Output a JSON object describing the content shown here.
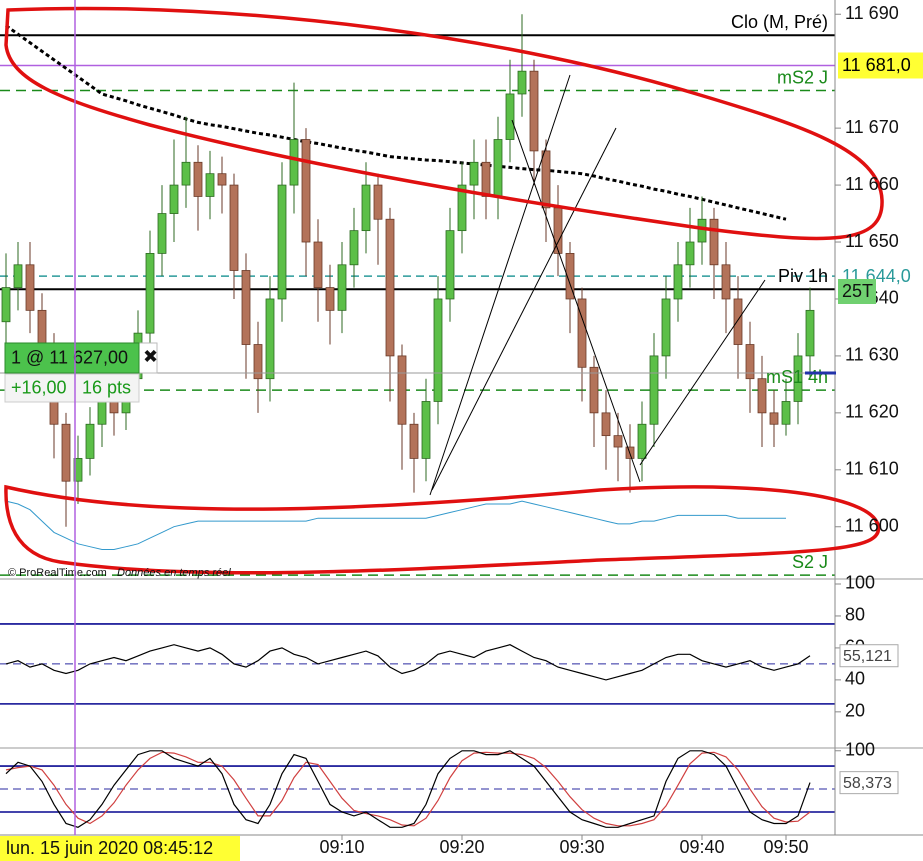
{
  "chart_data": [
    {
      "type": "candlestick",
      "categories": [
        null,
        null,
        null,
        null,
        null,
        null,
        null,
        null,
        null,
        null,
        null,
        null,
        null,
        null,
        null,
        null,
        null,
        null,
        null,
        null,
        null,
        null,
        null,
        null,
        null,
        null,
        null,
        null,
        "09:10",
        null,
        null,
        null,
        null,
        null,
        null,
        null,
        null,
        null,
        "09:20",
        null,
        null,
        null,
        null,
        null,
        null,
        null,
        null,
        null,
        "09:30",
        null,
        null,
        null,
        null,
        null,
        null,
        null,
        null,
        null,
        "09:40",
        null,
        null,
        null,
        null,
        null,
        null,
        "09:50",
        null,
        null
      ],
      "open": [
        11636,
        11642,
        11646,
        11638,
        11632,
        11618,
        11608,
        11612,
        11618,
        11622,
        11620,
        11626,
        11634,
        11648,
        11655,
        11660,
        11664,
        11658,
        11662,
        11660,
        11645,
        11632,
        11626,
        11640,
        11660,
        11668,
        11650,
        11642,
        11638,
        11646,
        11652,
        11660,
        11654,
        11630,
        11618,
        11612,
        11622,
        11640,
        11652,
        11660,
        11664,
        11658,
        11668,
        11676,
        11680,
        11666,
        11656,
        11648,
        11640,
        11628,
        11620,
        11616,
        11614,
        11612,
        11618,
        11630,
        11640,
        11646,
        11650,
        11654,
        11646,
        11640,
        11632,
        11626,
        11620,
        11618,
        11622,
        11630
      ],
      "high": [
        11648,
        11650,
        11650,
        11641,
        11634,
        11620,
        11616,
        11621,
        11626,
        11625,
        11629,
        11638,
        11652,
        11660,
        11668,
        11672,
        11667,
        11666,
        11665,
        11662,
        11648,
        11636,
        11644,
        11664,
        11678,
        11670,
        11654,
        11646,
        11650,
        11656,
        11664,
        11662,
        11656,
        11632,
        11620,
        11626,
        11644,
        11656,
        11664,
        11668,
        11668,
        11672,
        11682,
        11690,
        11682,
        11668,
        11660,
        11650,
        11642,
        11630,
        11624,
        11620,
        11618,
        11622,
        11634,
        11644,
        11650,
        11656,
        11658,
        11656,
        11650,
        11644,
        11636,
        11630,
        11624,
        11626,
        11634,
        11642
      ],
      "low": [
        11632,
        11638,
        11634,
        11628,
        11612,
        11600,
        11604,
        11609,
        11614,
        11616,
        11617,
        11622,
        11630,
        11644,
        11650,
        11656,
        11652,
        11654,
        11655,
        11640,
        11626,
        11620,
        11622,
        11636,
        11655,
        11644,
        11636,
        11632,
        11634,
        11642,
        11648,
        11646,
        11622,
        11610,
        11606,
        11608,
        11618,
        11636,
        11648,
        11654,
        11654,
        11654,
        11664,
        11672,
        11660,
        11650,
        11644,
        11634,
        11622,
        11614,
        11610,
        11608,
        11606,
        11608,
        11614,
        11626,
        11636,
        11642,
        11646,
        11640,
        11634,
        11626,
        11620,
        11614,
        11614,
        11616,
        11618,
        11626
      ],
      "close": [
        11642,
        11646,
        11638,
        11632,
        11618,
        11608,
        11612,
        11618,
        11622,
        11620,
        11626,
        11634,
        11648,
        11655,
        11660,
        11664,
        11658,
        11662,
        11660,
        11645,
        11632,
        11626,
        11640,
        11660,
        11668,
        11650,
        11642,
        11638,
        11646,
        11652,
        11660,
        11654,
        11630,
        11618,
        11612,
        11622,
        11640,
        11652,
        11660,
        11664,
        11658,
        11668,
        11676,
        11680,
        11666,
        11656,
        11648,
        11640,
        11628,
        11620,
        11616,
        11614,
        11612,
        11618,
        11630,
        11640,
        11646,
        11650,
        11654,
        11646,
        11640,
        11632,
        11626,
        11620,
        11618,
        11622,
        11630,
        11638
      ],
      "up_color": "#5cbf48",
      "down_color": "#b3735a",
      "ylim": [
        11591,
        11692.5
      ],
      "yticks": [
        {
          "value": 11690,
          "label": "11 690"
        },
        {
          "value": 11670,
          "label": "11 670"
        },
        {
          "value": 11660,
          "label": "11 660"
        },
        {
          "value": 11650,
          "label": "11 650"
        },
        {
          "value": 11640,
          "label": "11 640"
        },
        {
          "value": 11630,
          "label": "11 630"
        },
        {
          "value": 11620,
          "label": "11 620"
        },
        {
          "value": 11610,
          "label": "11 610"
        },
        {
          "value": 11600,
          "label": "11 600"
        }
      ],
      "levels": [
        {
          "name": "Clo (M, Pré)",
          "value": 11686.3,
          "color": "#000000"
        },
        {
          "value": 11681,
          "value_label": "11 681,0",
          "color": "#b060e0"
        },
        {
          "name": "mS2 J",
          "value": 11676.6,
          "color": "#1a8a1a"
        },
        {
          "value": 11644,
          "value_label": "11 644,0",
          "color": "#2a9a9a"
        },
        {
          "name": "Piv 1h",
          "value": 11641.7,
          "color": "#000000"
        },
        {
          "name": "mS1 4h",
          "value": 11624,
          "color": "#1a8a1a"
        },
        {
          "name": "S2 J",
          "value": 11591.5,
          "color": "#1a8a1a"
        }
      ],
      "overlays": [
        {
          "color": "#000000",
          "values": [
            11688,
            11686.5,
            11685,
            11683.5,
            11682,
            11680.5,
            11679,
            11677.5,
            11676,
            11675.4,
            11674.8,
            11674.1,
            11673.5,
            11672.9,
            11672.3,
            11671.6,
            11671,
            11670.6,
            11670.3,
            11669.9,
            11669.5,
            11669.1,
            11668.8,
            11668.4,
            11668,
            11667.6,
            11667.3,
            11666.9,
            11666.5,
            11666.1,
            11665.8,
            11665.4,
            11665,
            11664.8,
            11664.6,
            11664.4,
            11664.3,
            11664.1,
            11663.9,
            11663.7,
            11663.5,
            11663.3,
            11663.1,
            11662.9,
            11662.7,
            11662.6,
            11662.4,
            11662.2,
            11662,
            11661.6,
            11661.1,
            11660.7,
            11660.2,
            11659.8,
            11659.3,
            11658.9,
            11658.4,
            11658,
            11657.5,
            11657,
            11656.5,
            11656,
            11655.5,
            11655,
            11654.5,
            11654,
            null,
            null
          ]
        },
        {
          "color": "#3399cc",
          "values": [
            11604.5,
            11604,
            11603,
            11601,
            11599,
            11598,
            11597,
            11596.5,
            11596,
            11596,
            11596.5,
            11597,
            11598,
            11599,
            11600,
            11600.5,
            11601,
            11601,
            11601,
            11601,
            11601,
            11601,
            11601,
            11601,
            11601,
            11601,
            11601.5,
            11601.5,
            11601.5,
            11601.5,
            11601.5,
            11601.5,
            11601.5,
            11601.5,
            11601.5,
            11601.5,
            11602,
            11602.5,
            11603,
            11603.5,
            11604,
            11604,
            11604,
            11604.5,
            11604,
            11603.5,
            11603,
            11602.5,
            11602,
            11601.5,
            11601,
            11600.5,
            11600.5,
            11601,
            11601,
            11601.5,
            11602,
            11602,
            11602,
            11602,
            11602,
            11601.5,
            11601.5,
            11601.5,
            11601.5,
            11601.5,
            null,
            null
          ]
        }
      ],
      "order": {
        "label": "1 @ 11 627,00",
        "value": 11627,
        "pnl": "+16,00",
        "pts": "16 pts"
      },
      "tag": "25T",
      "source": "© ProRealTime.com",
      "source_note": "Données en temps réel",
      "crosshair_label": "lun. 15 juin 2020 08:45:12"
    },
    {
      "type": "line",
      "values": [
        50,
        52,
        48,
        50,
        46,
        44,
        46,
        50,
        52,
        54,
        52,
        55,
        58,
        60,
        62,
        60,
        58,
        60,
        56,
        50,
        48,
        52,
        58,
        60,
        56,
        54,
        50,
        52,
        54,
        56,
        58,
        55,
        48,
        44,
        46,
        50,
        56,
        58,
        56,
        54,
        58,
        60,
        62,
        58,
        54,
        52,
        48,
        46,
        44,
        42,
        40,
        42,
        44,
        46,
        50,
        54,
        56,
        56,
        52,
        50,
        48,
        50,
        52,
        48,
        46,
        48,
        50,
        55.121
      ],
      "color": "#000000",
      "ylim": [
        -2,
        102.5
      ],
      "yticks": [
        100,
        80,
        60,
        40,
        20
      ],
      "levels": [
        75,
        50,
        25
      ],
      "current": {
        "value": 55.121,
        "label": "55,121"
      }
    },
    {
      "type": "line",
      "series": [
        {
          "color": "#000000",
          "values": [
            70,
            85,
            80,
            60,
            30,
            5,
            0,
            10,
            30,
            55,
            75,
            95,
            100,
            100,
            90,
            85,
            80,
            90,
            70,
            30,
            10,
            5,
            30,
            70,
            95,
            90,
            60,
            30,
            20,
            15,
            20,
            10,
            0,
            0,
            5,
            30,
            70,
            90,
            100,
            100,
            95,
            95,
            100,
            90,
            80,
            60,
            40,
            20,
            10,
            5,
            0,
            0,
            5,
            10,
            15,
            60,
            90,
            100,
            100,
            95,
            80,
            50,
            20,
            10,
            5,
            5,
            15,
            58.373
          ]
        },
        {
          "color": "#d04040",
          "values": [
            75,
            78,
            80,
            75,
            55,
            30,
            12,
            5,
            15,
            32,
            55,
            75,
            90,
            98,
            97,
            92,
            85,
            85,
            80,
            62,
            38,
            15,
            15,
            35,
            65,
            85,
            82,
            60,
            38,
            22,
            18,
            15,
            10,
            3,
            2,
            12,
            35,
            65,
            87,
            97,
            98,
            97,
            97,
            95,
            90,
            78,
            60,
            40,
            23,
            12,
            5,
            2,
            2,
            5,
            10,
            28,
            55,
            83,
            97,
            98,
            92,
            75,
            50,
            27,
            12,
            7,
            8,
            20
          ]
        }
      ],
      "ylim": [
        -10,
        101
      ],
      "yticks": [
        100
      ],
      "levels": [
        80,
        50,
        20
      ],
      "current": {
        "value": 58.373,
        "label": "58,373"
      }
    }
  ]
}
